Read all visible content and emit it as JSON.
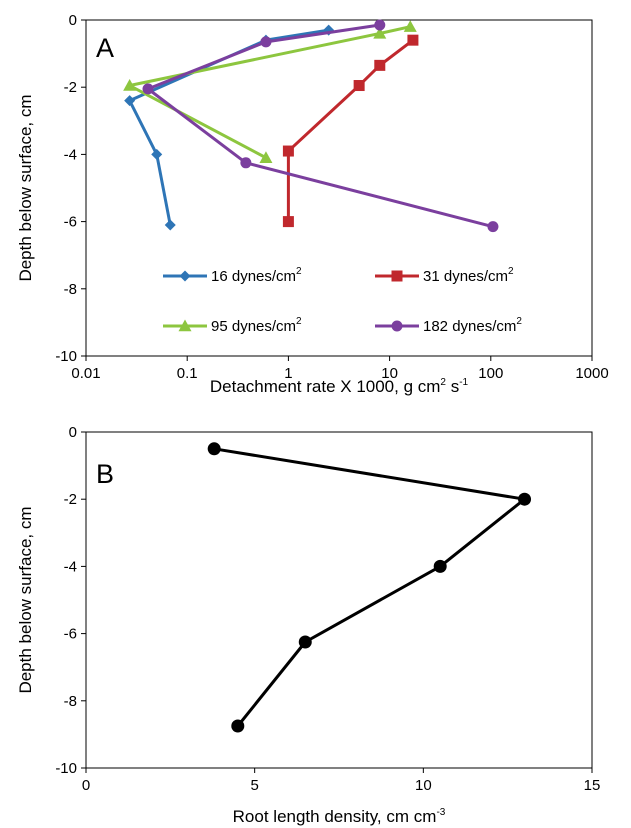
{
  "chart_data": [
    {
      "type": "line",
      "panel_label": "A",
      "xlabel": "Detachment rate X 1000, g cm",
      "xlabel_sup1": "2",
      "xlabel_mid": " s",
      "xlabel_sup2": "-1",
      "ylabel": "Depth below surface, cm",
      "xscale": "log",
      "xlim": [
        0.01,
        1000
      ],
      "ylim": [
        -10,
        0
      ],
      "xticks": [
        "0.01",
        "0.1",
        "1",
        "10",
        "100",
        "1000"
      ],
      "yticks": [
        "0",
        "-2",
        "-4",
        "-6",
        "-8",
        "-10"
      ],
      "legend_unit": "dynes/cm",
      "legend_unit_sup": "2",
      "series": [
        {
          "name": "16",
          "color": "#2e75b6",
          "marker": "diamond",
          "points": [
            [
              2.5,
              -0.3
            ],
            [
              0.6,
              -0.6
            ],
            [
              0.027,
              -2.4
            ],
            [
              0.05,
              -4.0
            ],
            [
              0.068,
              -6.1
            ]
          ]
        },
        {
          "name": "31",
          "color": "#c0282d",
          "marker": "square",
          "points": [
            [
              17,
              -0.6
            ],
            [
              8,
              -1.35
            ],
            [
              5,
              -1.95
            ],
            [
              1,
              -3.9
            ],
            [
              1,
              -6.0
            ]
          ]
        },
        {
          "name": "95",
          "color": "#8dc63f",
          "marker": "triangle",
          "points": [
            [
              16,
              -0.2
            ],
            [
              8,
              -0.4
            ],
            [
              0.027,
              -1.95
            ],
            [
              0.6,
              -4.1
            ]
          ]
        },
        {
          "name": "182",
          "color": "#7b3f9e",
          "marker": "circle",
          "points": [
            [
              8,
              -0.15
            ],
            [
              0.6,
              -0.65
            ],
            [
              0.041,
              -2.05
            ],
            [
              0.38,
              -4.25
            ],
            [
              105,
              -6.15
            ]
          ]
        }
      ]
    },
    {
      "type": "line",
      "panel_label": "B",
      "xlabel": "Root length density, cm cm",
      "xlabel_sup1": "-3",
      "ylabel": "Depth below surface, cm",
      "xlim": [
        0,
        15
      ],
      "ylim": [
        -10,
        0
      ],
      "xticks": [
        "0",
        "5",
        "10",
        "15"
      ],
      "yticks": [
        "0",
        "-2",
        "-4",
        "-6",
        "-8",
        "-10"
      ],
      "series": [
        {
          "color": "#000000",
          "marker": "circle",
          "points": [
            [
              3.8,
              -0.5
            ],
            [
              13,
              -2
            ],
            [
              10.5,
              -4
            ],
            [
              6.5,
              -6.25
            ],
            [
              4.5,
              -8.75
            ]
          ]
        }
      ]
    }
  ]
}
